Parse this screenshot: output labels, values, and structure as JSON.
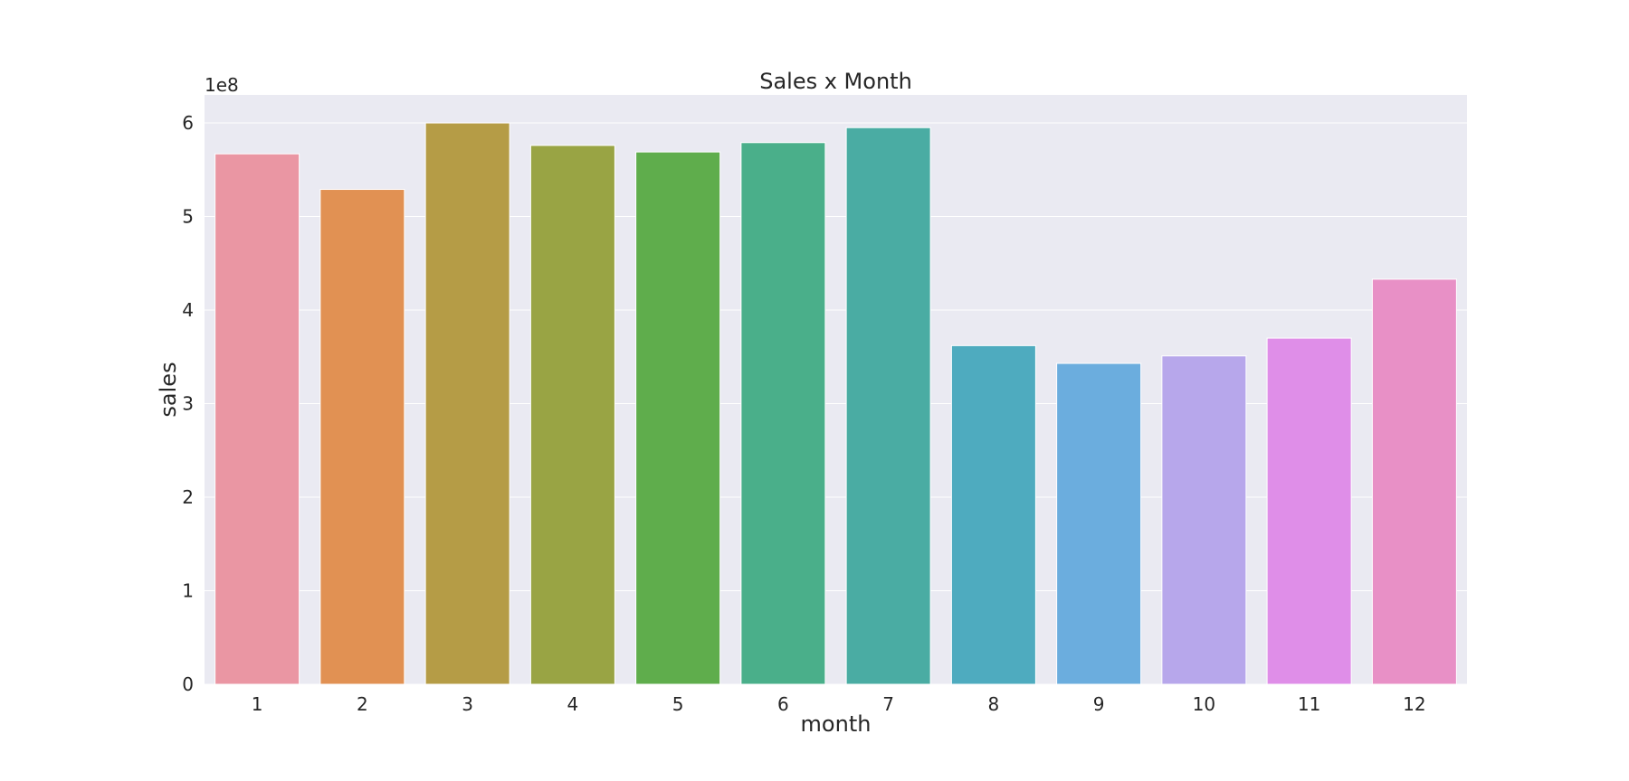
{
  "chart_data": {
    "type": "bar",
    "title": "Sales x Month",
    "xlabel": "month",
    "ylabel": "sales",
    "y_offset_label": "1e8",
    "categories": [
      "1",
      "2",
      "3",
      "4",
      "5",
      "6",
      "7",
      "8",
      "9",
      "10",
      "11",
      "12"
    ],
    "values": [
      567000000,
      529000000,
      600000000,
      576000000,
      569000000,
      579000000,
      595000000,
      362000000,
      343000000,
      351000000,
      370000000,
      433000000
    ],
    "colors": [
      "#ea96a3",
      "#e19153",
      "#b59c46",
      "#99a444",
      "#5fad4c",
      "#4aaf8a",
      "#4aaca3",
      "#4eabbf",
      "#6badde",
      "#b7a7eb",
      "#df8ee8",
      "#e890c6"
    ],
    "ylim": [
      0,
      630000000
    ],
    "yticks": [
      0,
      100000000,
      200000000,
      300000000,
      400000000,
      500000000,
      600000000
    ],
    "ytick_labels": [
      "0",
      "1",
      "2",
      "3",
      "4",
      "5",
      "6"
    ],
    "grid": true,
    "plot_background": "#eaeaf2",
    "grid_color": "#ffffff"
  }
}
